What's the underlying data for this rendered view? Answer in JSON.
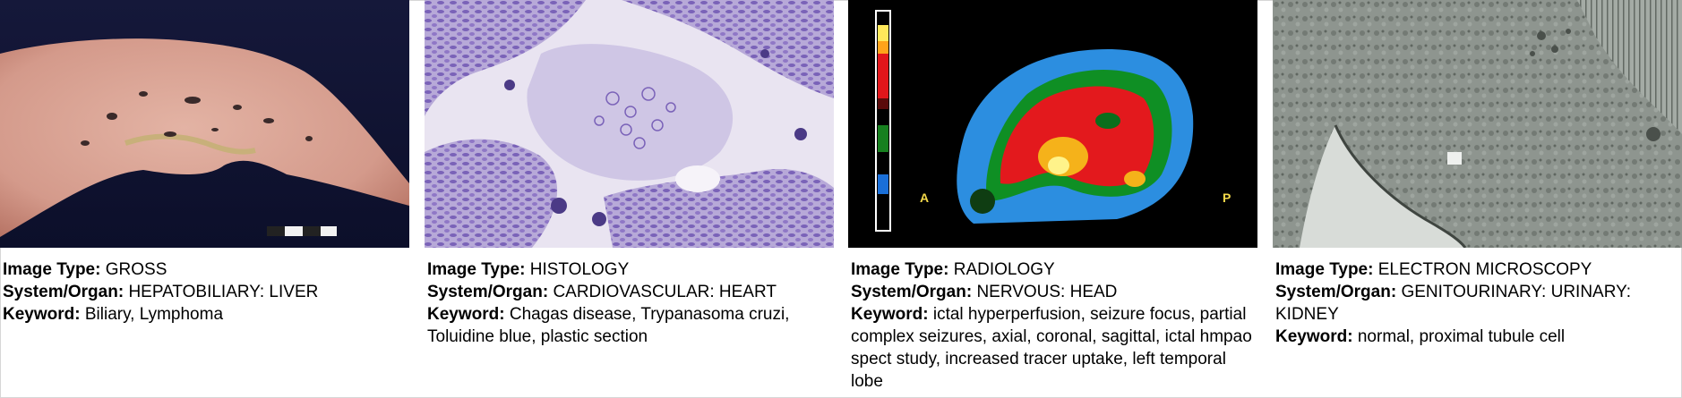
{
  "labels": {
    "image_type": "Image Type:",
    "system_organ": "System/Organ:",
    "keyword": "Keyword:"
  },
  "cards": [
    {
      "image_type": "GROSS",
      "system_organ": "HEPATOBILIARY: LIVER",
      "keyword": "Biliary, Lymphoma"
    },
    {
      "image_type": "HISTOLOGY",
      "system_organ": "CARDIOVASCULAR: HEART",
      "keyword": "Chagas disease, Trypanasoma cruzi, Toluidine blue, plastic section"
    },
    {
      "image_type": "RADIOLOGY",
      "system_organ": "NERVOUS: HEAD",
      "keyword": "ictal hyperperfusion, seizure focus, partial complex seizures, axial, coronal, sagittal, ictal hmpao spect study, increased tracer uptake, left temporal lobe",
      "scan_labels": {
        "anterior": "A",
        "posterior": "P"
      }
    },
    {
      "image_type": "ELECTRON MICROSCOPY",
      "system_organ": "GENITOURINARY: URINARY: KIDNEY",
      "keyword": "normal, proximal tubule cell"
    }
  ]
}
